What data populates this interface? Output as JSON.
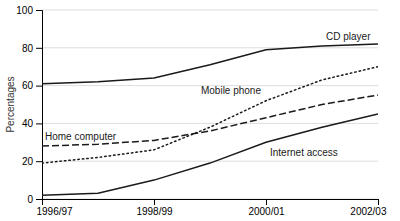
{
  "chart_data": {
    "type": "line",
    "ylabel": "Percentages",
    "categories": [
      "1996/97",
      null,
      "1998/99",
      null,
      "2000/01",
      null,
      "2002/03"
    ],
    "ylim": [
      0,
      100
    ],
    "yticks": [
      0,
      20,
      40,
      60,
      80,
      100
    ],
    "grid": "y",
    "series": [
      {
        "name": "CD player",
        "color": "#1a1a1a",
        "line_style": "solid",
        "values": [
          61,
          62,
          64,
          71,
          79,
          81,
          82
        ]
      },
      {
        "name": "Mobile phone",
        "color": "#1a1a1a",
        "line_style": "dotted",
        "values": [
          19,
          22,
          26,
          38,
          52,
          63,
          70
        ]
      },
      {
        "name": "Home computer",
        "color": "#1a1a1a",
        "line_style": "dashed",
        "values": [
          28,
          29,
          31,
          36,
          43,
          50,
          55
        ]
      },
      {
        "name": "Internet access",
        "color": "#1a1a1a",
        "line_style": "solid",
        "values": [
          2,
          3,
          10,
          19,
          30,
          38,
          45
        ]
      }
    ]
  }
}
